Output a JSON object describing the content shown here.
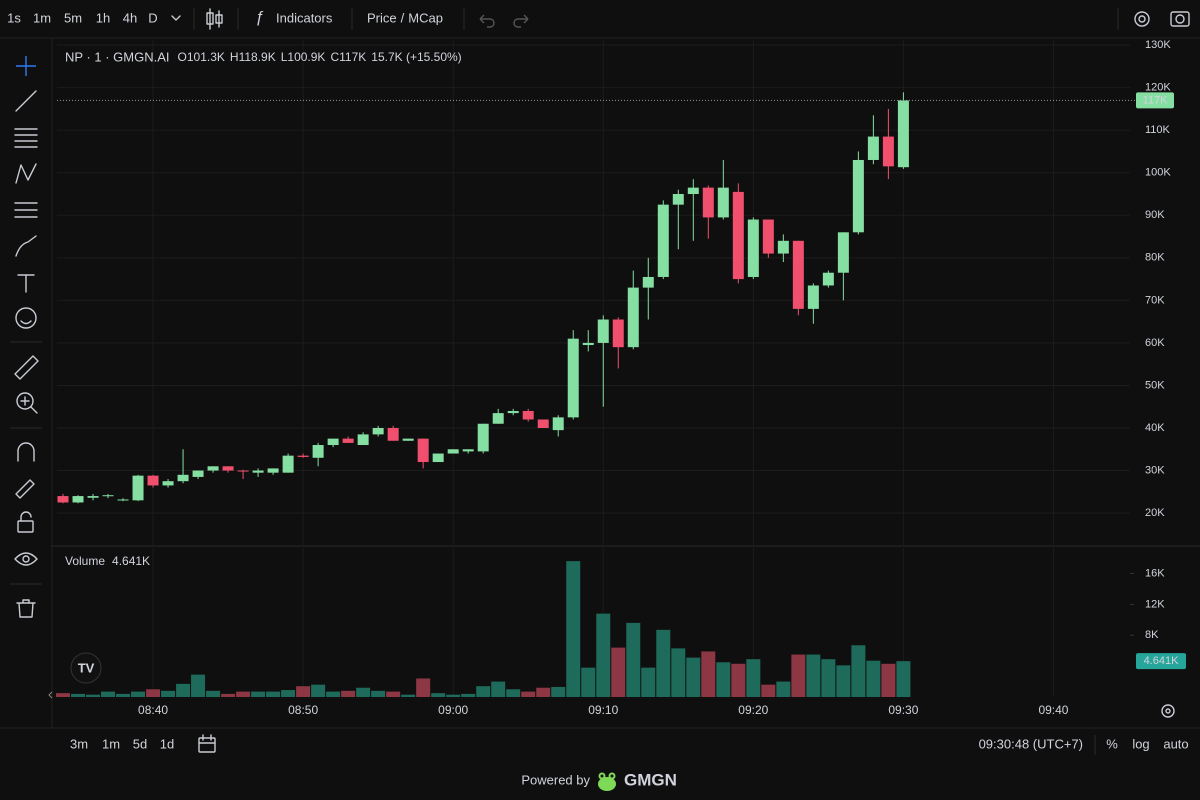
{
  "toolbar": {
    "intervals": [
      "1s",
      "1m",
      "5m",
      "1h",
      "4h",
      "D"
    ],
    "active_interval": 1,
    "indicators": "Indicators",
    "price_mode": {
      "options": [
        "Price",
        "MCap"
      ],
      "separator": "/",
      "active": 1
    }
  },
  "chart_data": {
    "type": "candlestick",
    "title": "NP · 1 · GMGN.AI",
    "legend": [
      {
        "label": "O",
        "value": "101.3K"
      },
      {
        "label": "H",
        "value": "118.9K"
      },
      {
        "label": "L",
        "value": "100.9K"
      },
      {
        "label": "C",
        "value": "117K"
      }
    ],
    "change": "15.7K (+15.50%)",
    "x": [
      514,
      515,
      516,
      517,
      518,
      519,
      520,
      521,
      522,
      523,
      524,
      525,
      526,
      527,
      528,
      529,
      530,
      531,
      532,
      533,
      534,
      535,
      536,
      537,
      538,
      539,
      540,
      541,
      542,
      543,
      544,
      545,
      546,
      547,
      548,
      549,
      550,
      551,
      552,
      553,
      554,
      555,
      556,
      557,
      558,
      559,
      560,
      561,
      562,
      563,
      564,
      565,
      566,
      567,
      568,
      569,
      570
    ],
    "xlim": [
      513.6,
      585.1
    ],
    "xticks": [
      {
        "value": 520,
        "label": "08:40"
      },
      {
        "value": 530,
        "label": "08:50"
      },
      {
        "value": 540,
        "label": "09:00"
      },
      {
        "value": 550,
        "label": "09:10"
      },
      {
        "value": 560,
        "label": "09:20"
      },
      {
        "value": 570,
        "label": "09:30"
      },
      {
        "value": 580,
        "label": "09:40"
      }
    ],
    "open": [
      24000,
      22500,
      23600,
      24000,
      23000,
      23000,
      28800,
      26500,
      27500,
      28500,
      30000,
      31000,
      30000,
      29500,
      29500,
      29500,
      33500,
      33000,
      36000,
      37500,
      36000,
      38500,
      40000,
      37000,
      37500,
      32000,
      34000,
      34500,
      34500,
      41000,
      43500,
      44000,
      42000,
      39500,
      42500,
      59500,
      60000,
      65500,
      59000,
      73000,
      75500,
      92500,
      95000,
      96500,
      89500,
      95500,
      75500,
      89000,
      81000,
      84000,
      68000,
      73500,
      76500,
      86000,
      103000,
      108500,
      101300
    ],
    "high": [
      24500,
      24200,
      24500,
      24500,
      23500,
      29000,
      29000,
      28000,
      35000,
      30000,
      31000,
      31000,
      30200,
      30500,
      30500,
      34000,
      34000,
      36500,
      37500,
      38000,
      39000,
      40500,
      40500,
      37500,
      37500,
      34000,
      35000,
      35000,
      41000,
      44500,
      44500,
      44500,
      42000,
      43000,
      63000,
      63000,
      66500,
      66000,
      77000,
      80000,
      93500,
      96000,
      98500,
      97000,
      103000,
      97500,
      89500,
      89000,
      85500,
      84000,
      74000,
      77000,
      86000,
      105000,
      113500,
      115000,
      118900
    ],
    "low": [
      22300,
      22300,
      23000,
      23500,
      22800,
      22800,
      26000,
      26000,
      27000,
      28000,
      29500,
      29500,
      28000,
      28500,
      29000,
      29500,
      33000,
      31000,
      35500,
      36500,
      36000,
      38000,
      37000,
      37000,
      30500,
      32000,
      34000,
      34000,
      34000,
      41000,
      43000,
      41500,
      40000,
      38000,
      42000,
      58000,
      45000,
      54000,
      58500,
      65500,
      75000,
      82000,
      84000,
      84500,
      89000,
      74000,
      75000,
      80000,
      79000,
      66500,
      64500,
      73000,
      70000,
      85500,
      102000,
      98500,
      100900
    ],
    "close": [
      22500,
      24000,
      24000,
      24200,
      23200,
      28800,
      26500,
      27500,
      29000,
      30000,
      31000,
      30000,
      29800,
      30000,
      30500,
      33500,
      33200,
      36000,
      37500,
      36500,
      38500,
      40000,
      37000,
      37500,
      32000,
      34000,
      35000,
      35000,
      41000,
      43500,
      44000,
      42000,
      40000,
      42500,
      61000,
      60000,
      65500,
      59000,
      73000,
      75500,
      92500,
      95000,
      96500,
      89500,
      96500,
      75000,
      89000,
      81000,
      84000,
      68000,
      73500,
      76500,
      86000,
      103000,
      108500,
      101500,
      117000
    ],
    "ylim": [
      12500,
      131200
    ],
    "yticks": [
      {
        "value": 130000,
        "label": "130K"
      },
      {
        "value": 120000,
        "label": "120K"
      },
      {
        "value": 110000,
        "label": "110K"
      },
      {
        "value": 100000,
        "label": "100K"
      },
      {
        "value": 90000,
        "label": "90K"
      },
      {
        "value": 80000,
        "label": "80K"
      },
      {
        "value": 70000,
        "label": "70K"
      },
      {
        "value": 60000,
        "label": "60K"
      },
      {
        "value": 50000,
        "label": "50K"
      },
      {
        "value": 40000,
        "label": "40K"
      },
      {
        "value": 30000,
        "label": "30K"
      },
      {
        "value": 20000,
        "label": "20K"
      }
    ],
    "last_label": "117K",
    "up_color": "#86dfa2",
    "down_color": "#f0506e",
    "grid": true,
    "volume": {
      "title": "Volume",
      "value_label": "4.641K",
      "values": [
        500,
        400,
        300,
        700,
        400,
        700,
        1000,
        800,
        1700,
        2900,
        800,
        400,
        700,
        700,
        700,
        900,
        1400,
        1600,
        700,
        800,
        1200,
        800,
        700,
        300,
        2400,
        500,
        300,
        400,
        1400,
        2000,
        1000,
        700,
        1200,
        1300,
        17600,
        3800,
        10800,
        6400,
        9600,
        3800,
        8700,
        6300,
        5100,
        5900,
        4500,
        4300,
        4900,
        1600,
        2000,
        5500,
        5500,
        4900,
        4100,
        6700,
        4700,
        4300,
        4641
      ],
      "ylim": [
        0,
        19300
      ],
      "yticks": [
        {
          "value": 16000,
          "label": "16K"
        },
        {
          "value": 12000,
          "label": "12K"
        },
        {
          "value": 8000,
          "label": "8K"
        }
      ],
      "up_color": "#1e6b5b",
      "down_color": "#8d3644",
      "label_color": "#26a69a"
    }
  },
  "bottom_bar": {
    "ranges": [
      "3m",
      "1m",
      "5d",
      "1d"
    ],
    "clock": "09:30:48 (UTC+7)",
    "scale_options": [
      "%",
      "log",
      "auto"
    ],
    "active_scale": 2
  },
  "footer": {
    "text": "Powered by",
    "brand": "GMGN"
  }
}
